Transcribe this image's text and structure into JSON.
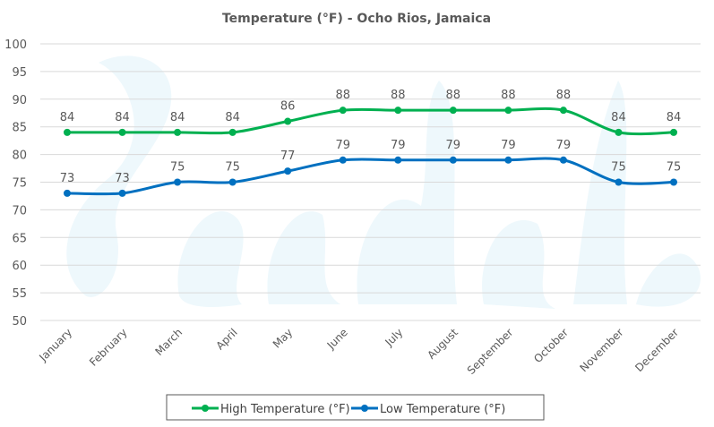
{
  "chart_data": {
    "type": "line",
    "title": "Temperature (°F) - Ocho Rios, Jamaica",
    "xlabel": "",
    "ylabel": "",
    "categories": [
      "January",
      "February",
      "March",
      "April",
      "May",
      "June",
      "July",
      "August",
      "September",
      "October",
      "November",
      "December"
    ],
    "series": [
      {
        "name": "High Temperature (°F)",
        "color": "#00B050",
        "values": [
          84,
          84,
          84,
          84,
          86,
          88,
          88,
          88,
          88,
          88,
          84,
          84
        ]
      },
      {
        "name": "Low Temperature (°F)",
        "color": "#0070C0",
        "values": [
          73,
          73,
          75,
          75,
          77,
          79,
          79,
          79,
          79,
          79,
          75,
          75
        ]
      }
    ],
    "ylim": [
      50,
      100
    ],
    "yticks": [
      50,
      55,
      60,
      65,
      70,
      75,
      80,
      85,
      90,
      95,
      100
    ],
    "grid": true,
    "smooth": true,
    "data_labels": true,
    "legend_position": "bottom",
    "watermark": "Sandals"
  }
}
